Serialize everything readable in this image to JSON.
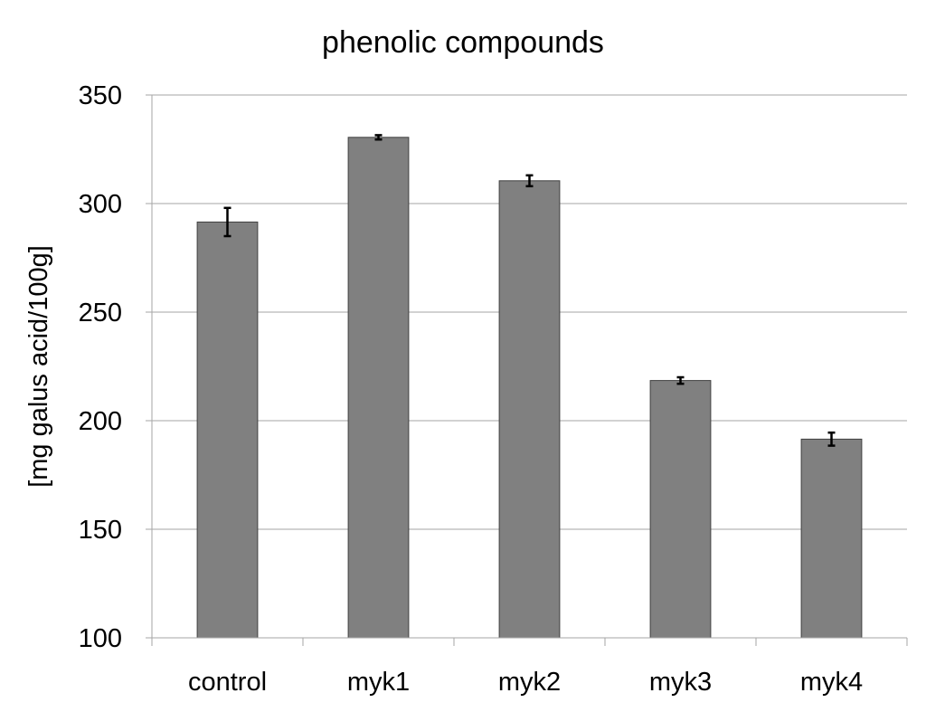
{
  "chart_data": {
    "type": "bar",
    "title": "phenolic compounds",
    "xlabel": "",
    "ylabel": "[mg galus acid/100g]",
    "categories": [
      "control",
      "myk1",
      "myk2",
      "myk3",
      "myk4"
    ],
    "values": [
      291.5,
      330.5,
      310.5,
      218.5,
      191.5
    ],
    "errors": [
      6.5,
      1,
      2.5,
      1.5,
      3
    ],
    "ylim": [
      100,
      350
    ],
    "yticks": [
      100,
      150,
      200,
      250,
      300,
      350
    ],
    "grid": true,
    "legend": "none",
    "bar_color": "#808080"
  }
}
